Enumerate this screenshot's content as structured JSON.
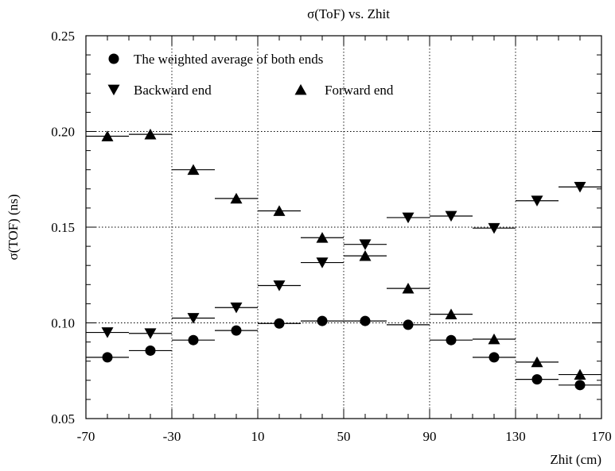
{
  "chart_data": {
    "type": "scatter",
    "title": "σ(ToF) vs. Zhit",
    "xlabel": "Zhit (cm)",
    "ylabel": "σ(TOF) (ns)",
    "xlim": [
      -70,
      170
    ],
    "ylim": [
      0.05,
      0.25
    ],
    "x_ticks": [
      "-70",
      "-30",
      "10",
      "50",
      "90",
      "130",
      "170"
    ],
    "y_ticks": [
      "0.05",
      "0.10",
      "0.15",
      "0.20",
      "0.25"
    ],
    "grid": true,
    "legend_position": "top-left",
    "x": [
      -60,
      -40,
      -20,
      0,
      20,
      40,
      60,
      80,
      100,
      120,
      140,
      160
    ],
    "bin_half_width": 10,
    "series": [
      {
        "name": "The weighted average of both ends",
        "marker": "circle",
        "values": [
          0.082,
          0.0855,
          0.091,
          0.096,
          0.0997,
          0.101,
          0.101,
          0.099,
          0.091,
          0.082,
          0.0705,
          0.0675
        ]
      },
      {
        "name": "Backward end",
        "marker": "triangle-down",
        "values": [
          0.095,
          0.0945,
          0.1025,
          0.108,
          0.1195,
          0.1315,
          0.141,
          0.155,
          0.1558,
          0.1495,
          0.1638,
          0.171
        ]
      },
      {
        "name": "Forward end",
        "marker": "triangle-up",
        "values": [
          0.1975,
          0.1985,
          0.18,
          0.165,
          0.1585,
          0.1445,
          0.135,
          0.118,
          0.1045,
          0.0915,
          0.0795,
          0.073
        ]
      }
    ]
  }
}
